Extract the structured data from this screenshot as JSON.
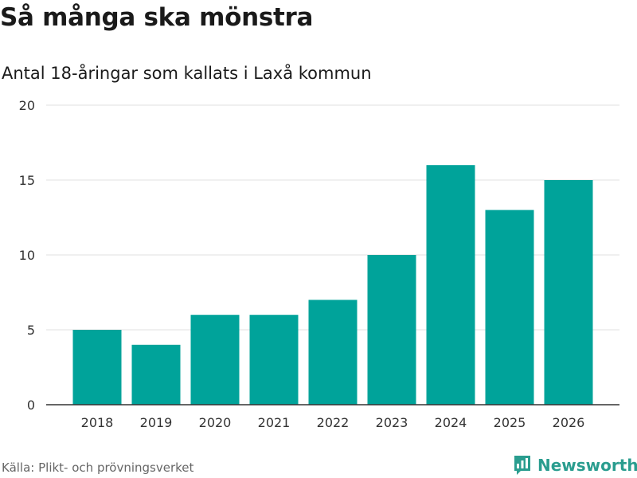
{
  "header": {
    "title": "Så många ska mönstra",
    "subtitle": "Antal 18-åringar som kallats i Laxå kommun"
  },
  "footer": {
    "source": "Källa: Plikt- och prövningsverket",
    "brand": "Newsworthy",
    "brand_icon": "bar-chart-speech-icon"
  },
  "colors": {
    "bar": "#00a39a",
    "grid": "#e0e0e0",
    "axis": "#333333",
    "brand": "#2a9d8f"
  },
  "chart_data": {
    "type": "bar",
    "title": "Så många ska mönstra",
    "subtitle": "Antal 18-åringar som kallats i Laxå kommun",
    "xlabel": "",
    "ylabel": "",
    "categories": [
      "2018",
      "2019",
      "2020",
      "2021",
      "2022",
      "2023",
      "2024",
      "2025",
      "2026"
    ],
    "values": [
      5,
      4,
      6,
      6,
      7,
      10,
      16,
      13,
      15
    ],
    "ylim": [
      0,
      20
    ],
    "yticks": [
      0,
      5,
      10,
      15,
      20
    ],
    "grid": true,
    "legend": "none"
  }
}
